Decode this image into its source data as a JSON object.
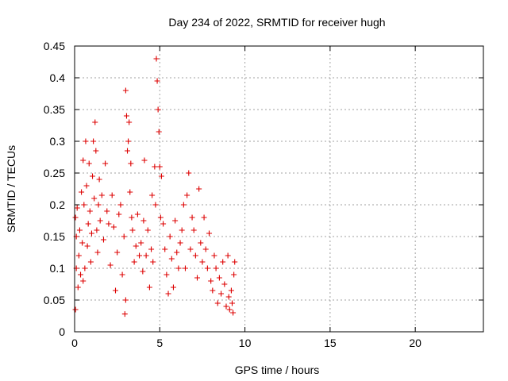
{
  "chart_data": {
    "type": "scatter",
    "title": "Day 234 of 2022, SRMTID for receiver hugh",
    "xlabel": "GPS time / hours",
    "ylabel": "SRMTID / TECUs",
    "xlim": [
      0,
      24
    ],
    "ylim": [
      0,
      0.45
    ],
    "x_ticks": [
      0,
      5,
      10,
      15,
      20
    ],
    "x_tick_labels": [
      "0",
      "5",
      "10",
      "15",
      "20"
    ],
    "y_ticks": [
      0,
      0.05,
      0.1,
      0.15,
      0.2,
      0.25,
      0.3,
      0.35,
      0.4,
      0.45
    ],
    "y_tick_labels": [
      "0",
      "0.05",
      "0.1",
      "0.15",
      "0.2",
      "0.25",
      "0.3",
      "0.35",
      "0.4",
      "0.45"
    ],
    "grid": true,
    "marker": "+",
    "color": "#dd0000",
    "series": [
      {
        "name": "SRMTID",
        "points": [
          [
            0.05,
            0.035
          ],
          [
            0.05,
            0.18
          ],
          [
            0.1,
            0.1
          ],
          [
            0.1,
            0.15
          ],
          [
            0.15,
            0.195
          ],
          [
            0.2,
            0.07
          ],
          [
            0.25,
            0.12
          ],
          [
            0.3,
            0.16
          ],
          [
            0.35,
            0.09
          ],
          [
            0.4,
            0.22
          ],
          [
            0.45,
            0.14
          ],
          [
            0.5,
            0.27
          ],
          [
            0.5,
            0.08
          ],
          [
            0.55,
            0.2
          ],
          [
            0.6,
            0.1
          ],
          [
            0.65,
            0.3
          ],
          [
            0.7,
            0.23
          ],
          [
            0.75,
            0.135
          ],
          [
            0.8,
            0.17
          ],
          [
            0.85,
            0.265
          ],
          [
            0.9,
            0.19
          ],
          [
            0.95,
            0.11
          ],
          [
            1.0,
            0.155
          ],
          [
            1.05,
            0.245
          ],
          [
            1.1,
            0.3
          ],
          [
            1.15,
            0.21
          ],
          [
            1.2,
            0.33
          ],
          [
            1.25,
            0.285
          ],
          [
            1.3,
            0.16
          ],
          [
            1.35,
            0.125
          ],
          [
            1.4,
            0.2
          ],
          [
            1.45,
            0.24
          ],
          [
            1.5,
            0.175
          ],
          [
            1.6,
            0.215
          ],
          [
            1.7,
            0.145
          ],
          [
            1.8,
            0.265
          ],
          [
            1.9,
            0.19
          ],
          [
            2.0,
            0.17
          ],
          [
            2.1,
            0.105
          ],
          [
            2.2,
            0.215
          ],
          [
            2.3,
            0.165
          ],
          [
            2.4,
            0.065
          ],
          [
            2.5,
            0.125
          ],
          [
            2.6,
            0.185
          ],
          [
            2.7,
            0.2
          ],
          [
            2.8,
            0.09
          ],
          [
            2.9,
            0.15
          ],
          [
            2.95,
            0.028
          ],
          [
            3.0,
            0.38
          ],
          [
            3.0,
            0.05
          ],
          [
            3.05,
            0.34
          ],
          [
            3.1,
            0.285
          ],
          [
            3.15,
            0.3
          ],
          [
            3.2,
            0.33
          ],
          [
            3.25,
            0.22
          ],
          [
            3.3,
            0.265
          ],
          [
            3.35,
            0.18
          ],
          [
            3.4,
            0.16
          ],
          [
            3.5,
            0.11
          ],
          [
            3.6,
            0.135
          ],
          [
            3.7,
            0.185
          ],
          [
            3.8,
            0.12
          ],
          [
            3.9,
            0.14
          ],
          [
            4.0,
            0.095
          ],
          [
            4.05,
            0.175
          ],
          [
            4.1,
            0.27
          ],
          [
            4.2,
            0.12
          ],
          [
            4.3,
            0.16
          ],
          [
            4.4,
            0.07
          ],
          [
            4.5,
            0.13
          ],
          [
            4.55,
            0.215
          ],
          [
            4.6,
            0.11
          ],
          [
            4.7,
            0.26
          ],
          [
            4.75,
            0.2
          ],
          [
            4.8,
            0.43
          ],
          [
            4.85,
            0.395
          ],
          [
            4.9,
            0.35
          ],
          [
            4.95,
            0.315
          ],
          [
            5.0,
            0.26
          ],
          [
            5.05,
            0.18
          ],
          [
            5.1,
            0.245
          ],
          [
            5.2,
            0.17
          ],
          [
            5.3,
            0.13
          ],
          [
            5.4,
            0.09
          ],
          [
            5.5,
            0.06
          ],
          [
            5.6,
            0.15
          ],
          [
            5.7,
            0.115
          ],
          [
            5.8,
            0.07
          ],
          [
            5.9,
            0.175
          ],
          [
            6.0,
            0.125
          ],
          [
            6.1,
            0.1
          ],
          [
            6.2,
            0.14
          ],
          [
            6.3,
            0.16
          ],
          [
            6.4,
            0.2
          ],
          [
            6.5,
            0.1
          ],
          [
            6.6,
            0.215
          ],
          [
            6.7,
            0.25
          ],
          [
            6.8,
            0.13
          ],
          [
            6.9,
            0.18
          ],
          [
            7.0,
            0.16
          ],
          [
            7.1,
            0.12
          ],
          [
            7.2,
            0.085
          ],
          [
            7.3,
            0.225
          ],
          [
            7.4,
            0.14
          ],
          [
            7.5,
            0.11
          ],
          [
            7.6,
            0.18
          ],
          [
            7.7,
            0.13
          ],
          [
            7.8,
            0.1
          ],
          [
            7.9,
            0.155
          ],
          [
            8.0,
            0.08
          ],
          [
            8.1,
            0.065
          ],
          [
            8.2,
            0.12
          ],
          [
            8.3,
            0.1
          ],
          [
            8.4,
            0.045
          ],
          [
            8.5,
            0.085
          ],
          [
            8.6,
            0.06
          ],
          [
            8.7,
            0.11
          ],
          [
            8.8,
            0.075
          ],
          [
            8.9,
            0.04
          ],
          [
            9.0,
            0.12
          ],
          [
            9.05,
            0.055
          ],
          [
            9.1,
            0.035
          ],
          [
            9.2,
            0.065
          ],
          [
            9.25,
            0.045
          ],
          [
            9.3,
            0.03
          ],
          [
            9.35,
            0.09
          ],
          [
            9.4,
            0.11
          ]
        ]
      }
    ]
  }
}
